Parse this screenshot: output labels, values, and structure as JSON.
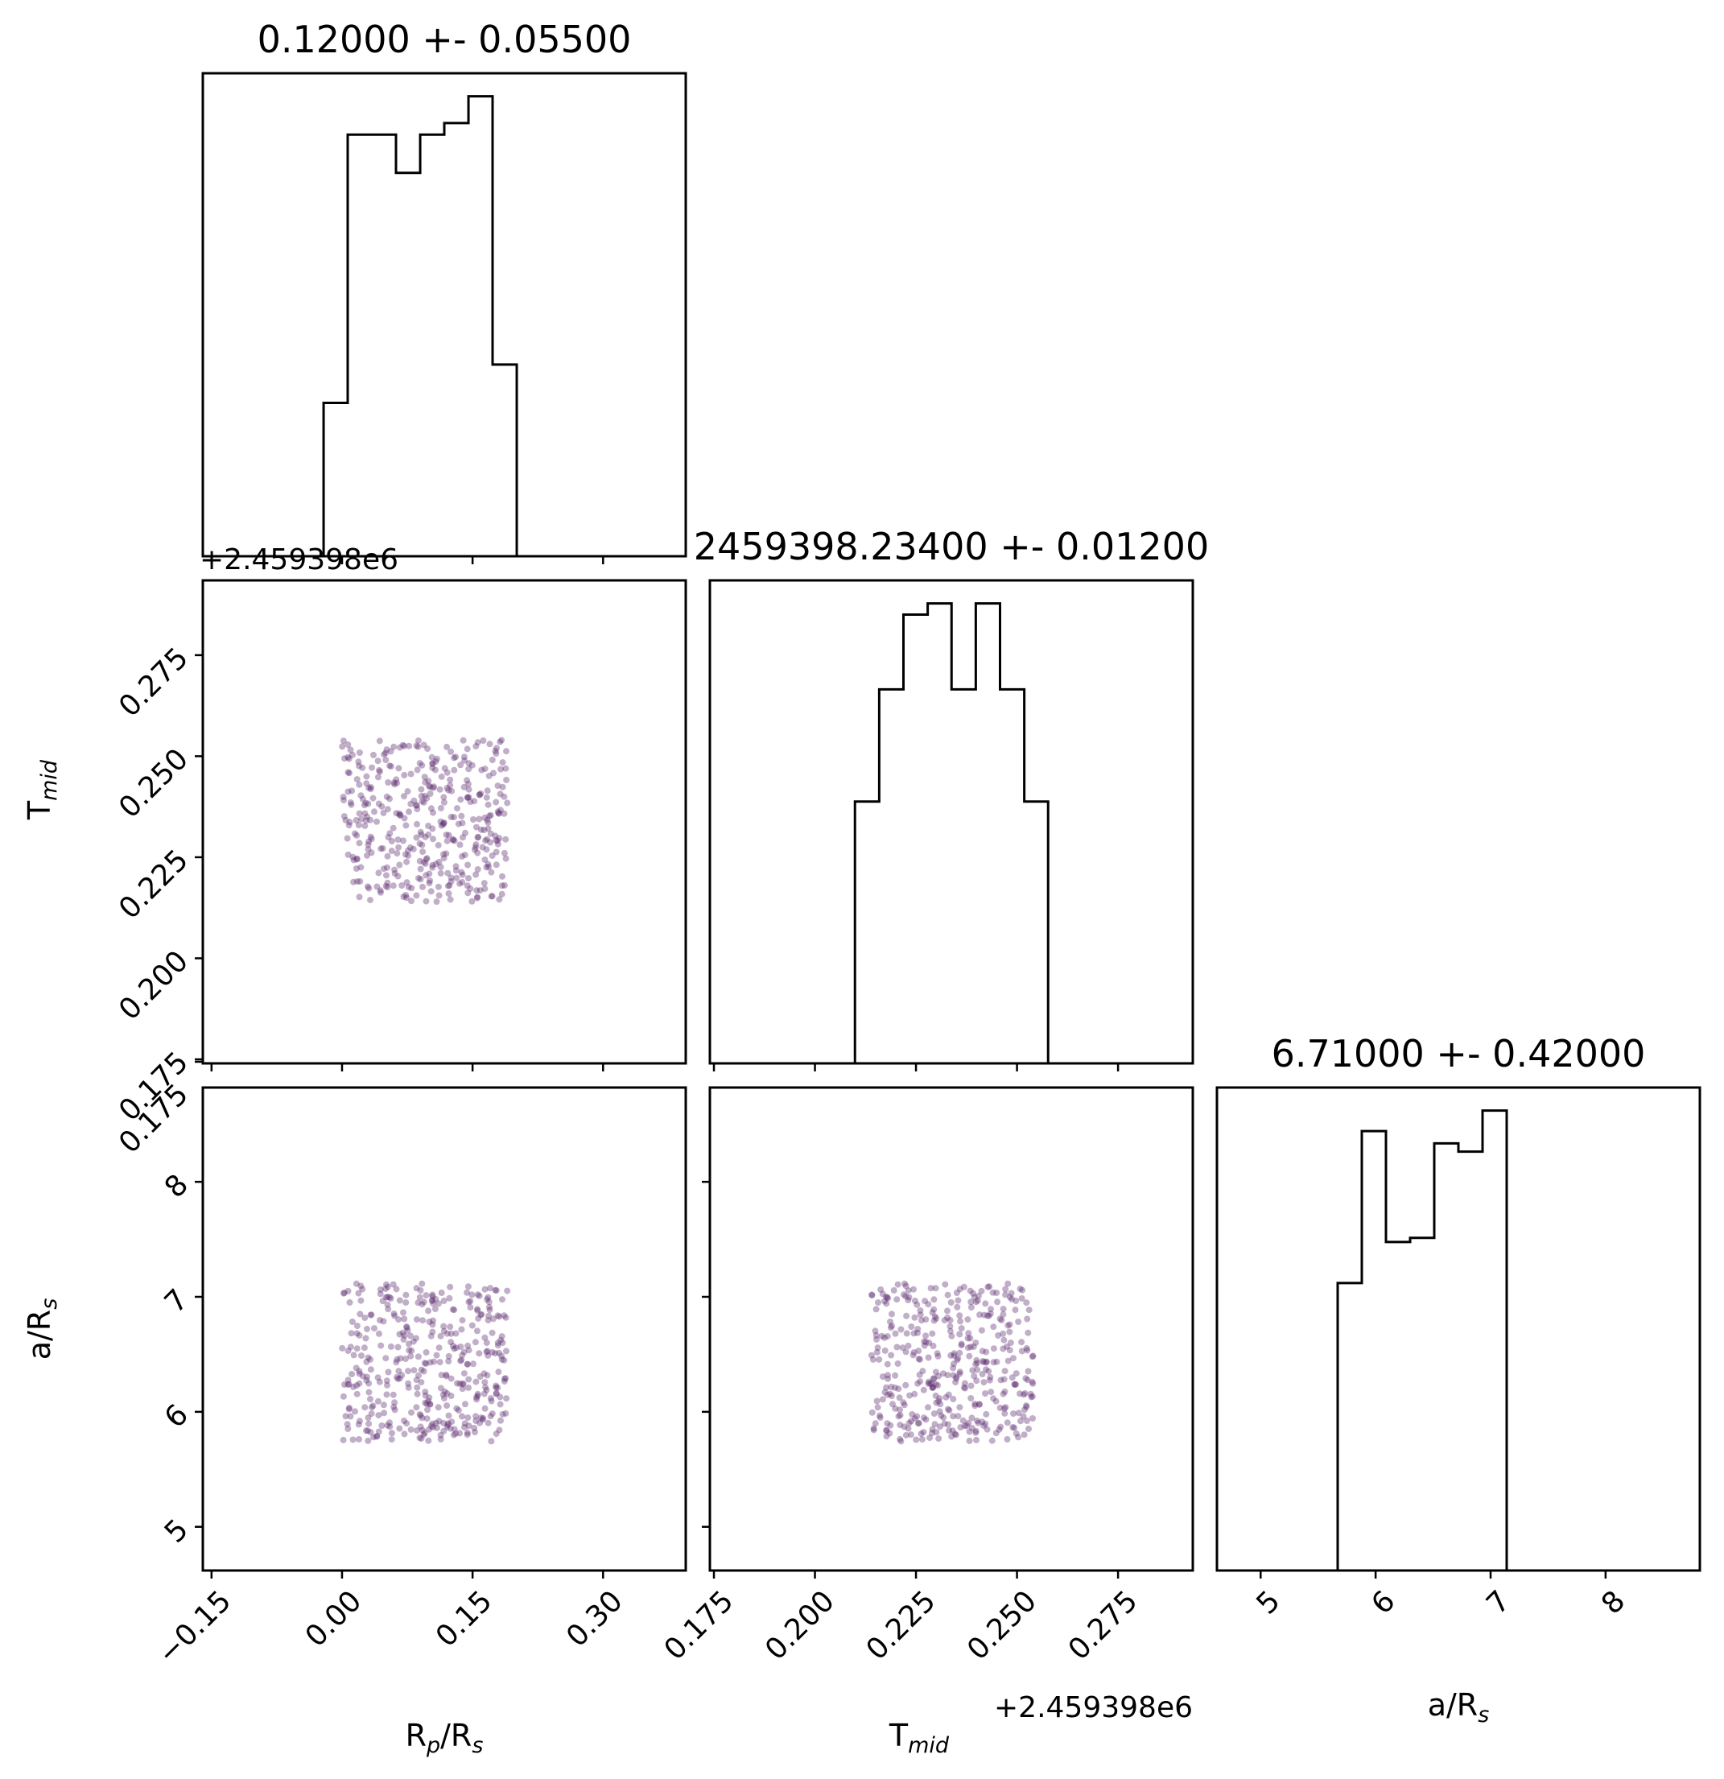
{
  "chart_data": {
    "type": "corner",
    "parameters": [
      {
        "name": "Rp/Rs",
        "label_main": "R",
        "label_sub": "p",
        "label_tail": "/R",
        "label_sub2": "s",
        "title": "0.12000 +- 0.05500",
        "range": [
          -0.16,
          0.395
        ],
        "ticks": [
          -0.15,
          0.0,
          0.15,
          0.3
        ],
        "tick_labels": [
          "−0.15",
          "0.00",
          "0.15",
          "0.30"
        ],
        "offset_text": ""
      },
      {
        "name": "T_mid",
        "label_main": "T",
        "label_sub": "mid",
        "label_tail": "",
        "label_sub2": "",
        "title": "2459398.23400 +- 0.01200",
        "range": [
          0.174,
          0.2935
        ],
        "ticks": [
          0.175,
          0.2,
          0.225,
          0.25,
          0.275
        ],
        "tick_labels": [
          "0.175",
          "0.200",
          "0.225",
          "0.250",
          "0.275"
        ],
        "offset_text": "+2.459398e6"
      },
      {
        "name": "a/Rs",
        "label_main": "a/R",
        "label_sub": "s",
        "label_tail": "",
        "label_sub2": "",
        "title": "6.71000 +- 0.42000",
        "range": [
          4.62,
          8.82
        ],
        "ticks": [
          5,
          6,
          7,
          8
        ],
        "tick_labels": [
          "5",
          "6",
          "7",
          "8"
        ],
        "offset_text": ""
      }
    ],
    "histograms": [
      {
        "param": "Rp/Rs",
        "bin_edges": [
          -0.16,
          -0.1322,
          -0.1045,
          -0.0767,
          -0.049,
          -0.0212,
          0.0065,
          0.0343,
          0.062,
          0.0898,
          0.1175,
          0.1453,
          0.173,
          0.2008,
          0.2285,
          0.2563,
          0.284,
          0.3118,
          0.3395,
          0.3673,
          0.395
        ],
        "counts": [
          0,
          0,
          0,
          0,
          0,
          4,
          11,
          11,
          10,
          11,
          11.3,
          12,
          5,
          0,
          0,
          0,
          0,
          0,
          0,
          0
        ]
      },
      {
        "param": "T_mid",
        "bin_edges": [
          0.174,
          0.18,
          0.186,
          0.192,
          0.198,
          0.204,
          0.2099,
          0.2159,
          0.2219,
          0.2279,
          0.2338,
          0.2398,
          0.2458,
          0.2518,
          0.2577,
          0.2637,
          0.2697,
          0.2757,
          0.2816,
          0.2876,
          0.2935
        ],
        "counts": [
          0,
          0,
          0,
          0,
          0,
          0,
          7,
          10,
          12,
          12.3,
          10,
          12.3,
          10,
          7,
          0,
          0,
          0,
          0,
          0,
          0
        ]
      },
      {
        "param": "a/Rs",
        "bin_edges": [
          4.62,
          4.83,
          5.04,
          5.25,
          5.46,
          5.67,
          5.88,
          6.09,
          6.3,
          6.51,
          6.72,
          6.93,
          7.14,
          7.35,
          7.56,
          7.77,
          7.98,
          8.19,
          8.4,
          8.61,
          8.82
        ],
        "counts": [
          0,
          0,
          0,
          0,
          0,
          7,
          10.7,
          8,
          8.1,
          10.4,
          10.2,
          11.2,
          0,
          0,
          0,
          0,
          0,
          0,
          0,
          0
        ]
      }
    ],
    "scatter": {
      "n_points": 400,
      "color": "#5b2a6e",
      "opacity": 0.38,
      "ranges": {
        "Rp/Rs": [
          0.0,
          0.19
        ],
        "T_mid": [
          0.214,
          0.254
        ],
        "a/Rs": [
          5.74,
          7.12
        ]
      },
      "panels": [
        {
          "x": "Rp/Rs",
          "y": "T_mid"
        },
        {
          "x": "Rp/Rs",
          "y": "a/Rs"
        },
        {
          "x": "T_mid",
          "y": "a/Rs"
        }
      ]
    },
    "histogram_style": {
      "step": true,
      "line_color": "#000000"
    },
    "grid": false,
    "legend": "none"
  }
}
